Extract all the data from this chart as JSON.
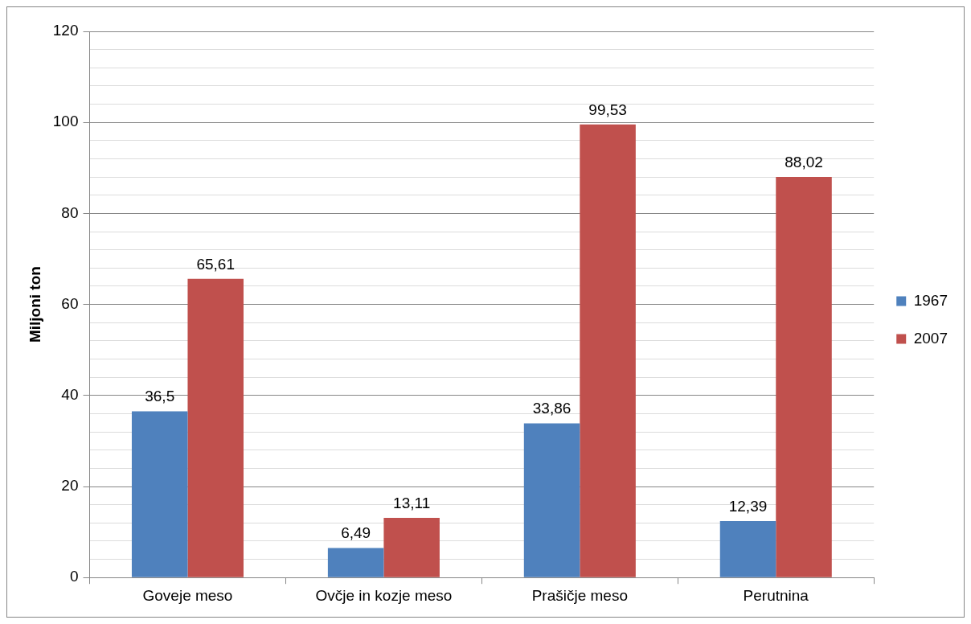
{
  "chart_data": {
    "type": "bar",
    "ylabel": "Miljoni ton",
    "categories": [
      "Goveje meso",
      "Ovčje in kozje meso",
      "Prašičje meso",
      "Perutnina"
    ],
    "series": [
      {
        "name": "1967",
        "color": "#4f81bd",
        "values": [
          36.5,
          6.49,
          33.86,
          12.39
        ],
        "value_labels": [
          "36,5",
          "6,49",
          "33,86",
          "12,39"
        ]
      },
      {
        "name": "2007",
        "color": "#c0504d",
        "values": [
          65.61,
          13.11,
          99.53,
          88.02
        ],
        "value_labels": [
          "65,61",
          "13,11",
          "99,53",
          "88,02"
        ]
      }
    ],
    "ylim": [
      0,
      120
    ],
    "yticks": [
      0,
      {
        "value": 4,
        "label": null
      },
      {
        "value": 8,
        "label": null
      },
      {
        "value": 12,
        "label": null
      },
      {
        "value": 16,
        "label": null
      },
      20,
      {
        "value": 24,
        "label": null
      },
      {
        "value": 28,
        "label": null
      },
      {
        "value": 32,
        "label": null
      },
      {
        "value": 36,
        "label": null
      },
      40,
      {
        "value": 44,
        "label": null
      },
      {
        "value": 48,
        "label": null
      },
      {
        "value": 52,
        "label": null
      },
      {
        "value": 56,
        "label": null
      },
      60,
      {
        "value": 64,
        "label": null
      },
      {
        "value": 68,
        "label": null
      },
      {
        "value": 72,
        "label": null
      },
      {
        "value": 76,
        "label": null
      },
      80,
      {
        "value": 84,
        "label": null
      },
      {
        "value": 88,
        "label": null
      },
      {
        "value": 92,
        "label": null
      },
      {
        "value": 96,
        "label": null
      },
      100,
      {
        "value": 104,
        "label": null
      },
      {
        "value": 108,
        "label": null
      },
      {
        "value": 112,
        "label": null
      },
      {
        "value": 116,
        "label": null
      },
      120
    ],
    "grid": "y",
    "legend": "right"
  }
}
